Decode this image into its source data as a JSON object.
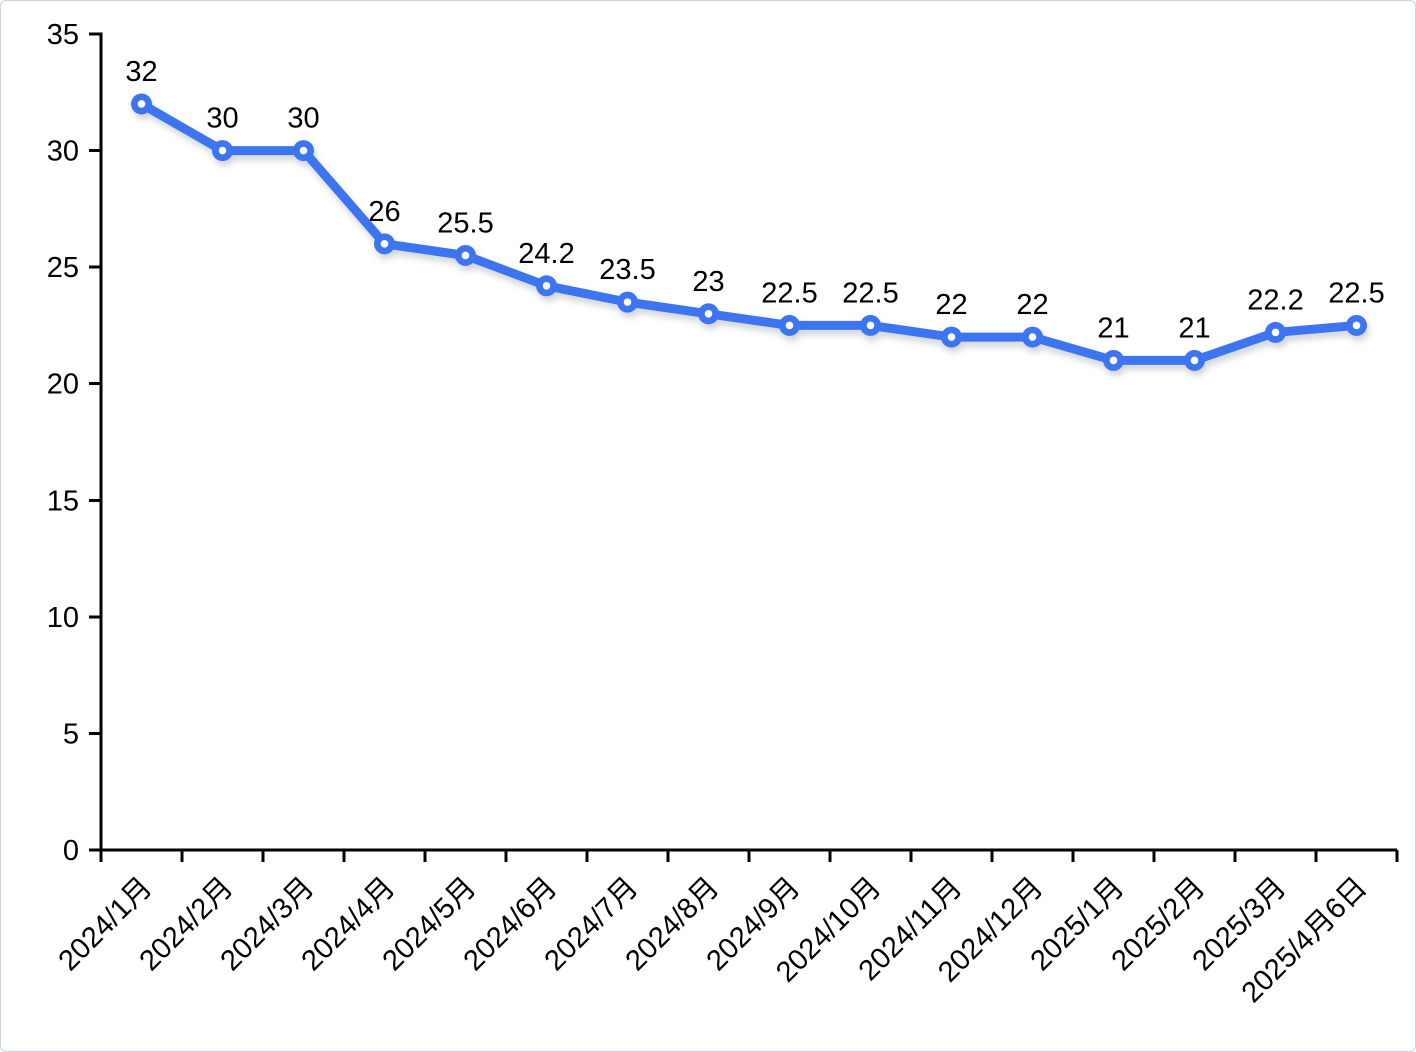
{
  "page": {
    "background_color": "#ffffff",
    "border_color": "#ccd3dc"
  },
  "chart_data": {
    "type": "line",
    "title": "",
    "xlabel": "",
    "ylabel": "",
    "legend": "none",
    "grid": "off",
    "categories": [
      "2024/1月",
      "2024/2月",
      "2024/3月",
      "2024/4月",
      "2024/5月",
      "2024/6月",
      "2024/7月",
      "2024/8月",
      "2024/9月",
      "2024/10月",
      "2024/11月",
      "2024/12月",
      "2025/1月",
      "2025/2月",
      "2025/3月",
      "2025/4月6日"
    ],
    "series": [
      {
        "name": "",
        "values": [
          32,
          30,
          30,
          26,
          25.5,
          24.2,
          23.5,
          23,
          22.5,
          22.5,
          22,
          22,
          21,
          21,
          22.2,
          22.5
        ],
        "data_labels": [
          "32",
          "30",
          "30",
          "26",
          "25.5",
          "24.2",
          "23.5",
          "23",
          "22.5",
          "22.5",
          "22",
          "22",
          "21",
          "21",
          "22.2",
          "22.5"
        ]
      }
    ],
    "ylim": [
      0,
      35
    ],
    "yticks": [
      0,
      5,
      10,
      15,
      20,
      25,
      30,
      35
    ],
    "x_label_rotation_deg": 45,
    "colors": {
      "line": "#3E74F0",
      "marker_fill": "#3E74F0",
      "marker_center": "#ffffff",
      "axis": "#000000",
      "text": "#000000",
      "shadow": "#9aa0aa"
    }
  }
}
